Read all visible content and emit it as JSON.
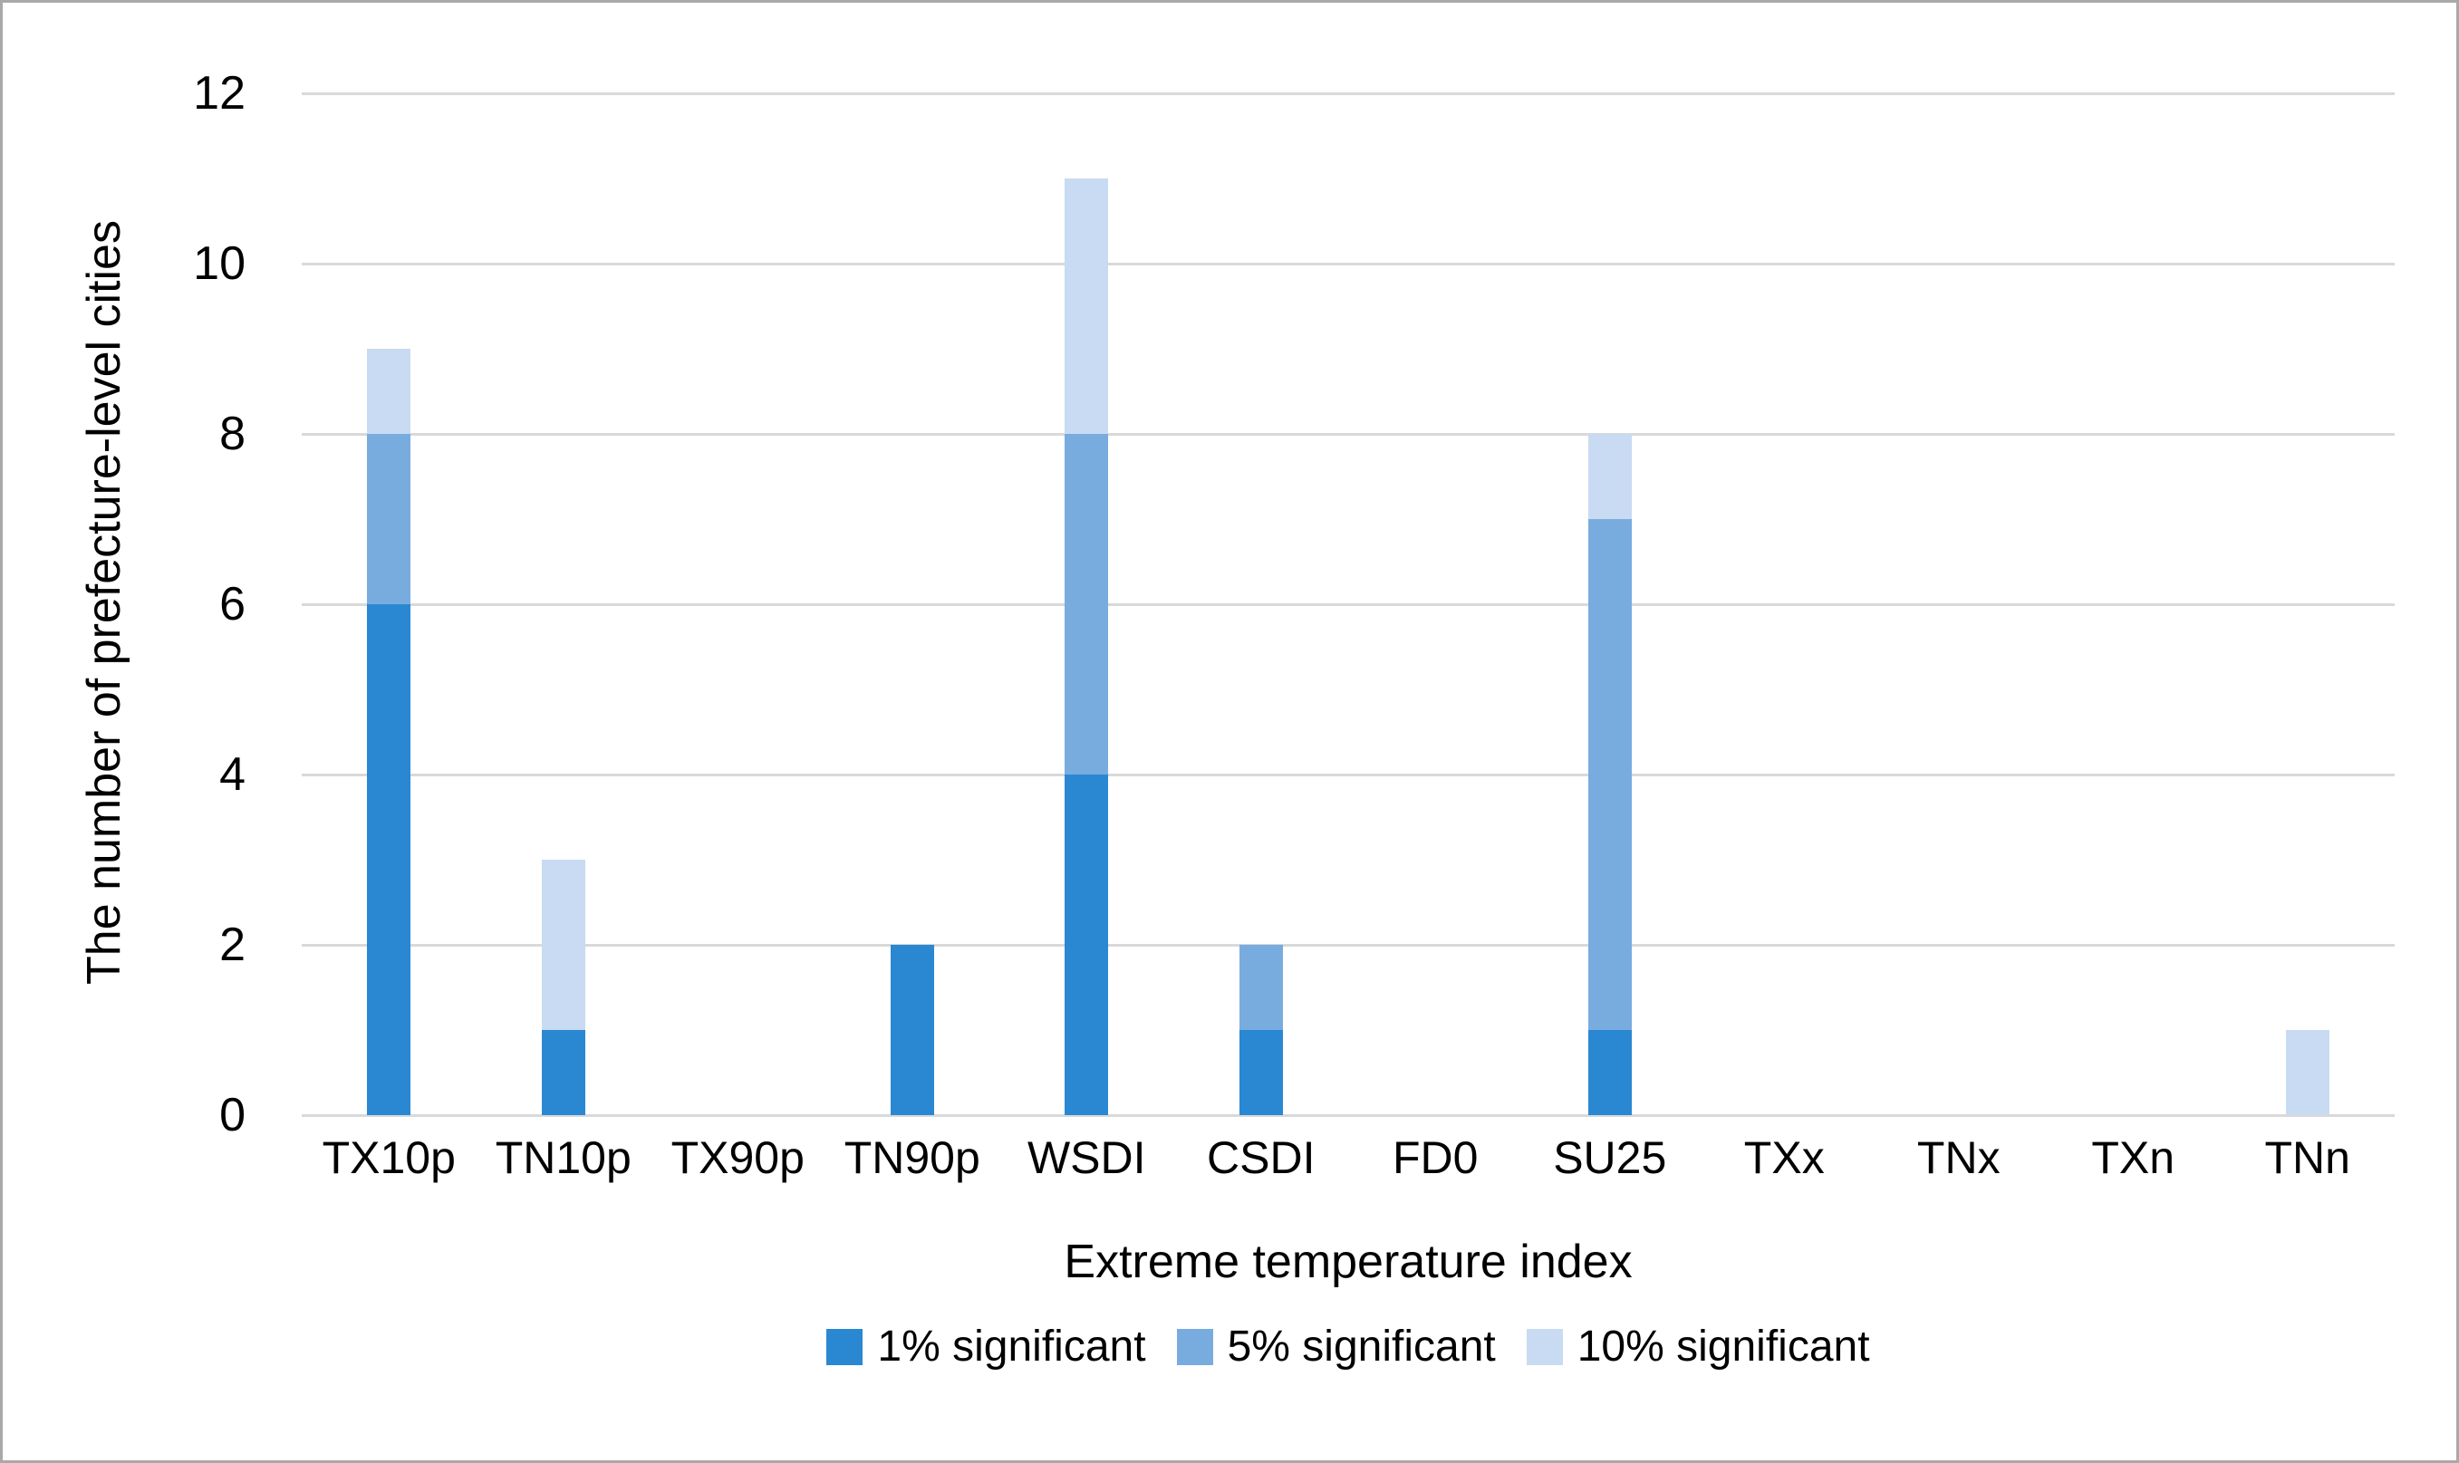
{
  "figure": {
    "background": "#ffffff",
    "border_color": "#a9a9a9"
  },
  "colors": {
    "significant_1pct": "#2a88d2",
    "significant_5pct": "#78acdf",
    "significant_10pct": "#c8dbf2",
    "gridline": "#d9d9d9",
    "text": "#000000"
  },
  "chart_data": {
    "type": "bar",
    "stacked": true,
    "title": "",
    "xlabel": "Extreme temperature index",
    "ylabel": "The number of prefecture-level cities",
    "categories": [
      "TX10p",
      "TN10p",
      "TX90p",
      "TN90p",
      "WSDI",
      "CSDI",
      "FD0",
      "SU25",
      "TXx",
      "TNx",
      "TXn",
      "TNn"
    ],
    "series": [
      {
        "name": "1% significant",
        "color": "#2a88d2",
        "values": [
          6,
          1,
          0,
          2,
          4,
          1,
          0,
          1,
          0,
          0,
          0,
          0
        ]
      },
      {
        "name": "5% significant",
        "color": "#78acdf",
        "values": [
          2,
          0,
          0,
          0,
          4,
          1,
          0,
          6,
          0,
          0,
          0,
          0
        ]
      },
      {
        "name": "10% significant",
        "color": "#c8dbf2",
        "values": [
          1,
          2,
          0,
          0,
          3,
          0,
          0,
          1,
          0,
          0,
          0,
          1
        ]
      }
    ],
    "totals": [
      9,
      3,
      0,
      2,
      11,
      2,
      0,
      8,
      0,
      0,
      0,
      1
    ],
    "ylim": [
      0,
      12
    ],
    "yticks": [
      0,
      2,
      4,
      6,
      8,
      10,
      12
    ],
    "grid": true,
    "legend_position": "bottom"
  }
}
